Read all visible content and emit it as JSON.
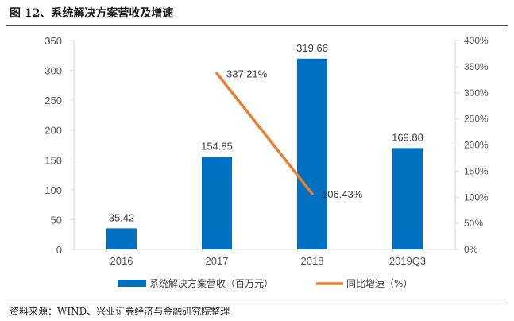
{
  "header": {
    "title": "图 12、系统解决方案营收及增速"
  },
  "footer": {
    "source": "资料来源：WIND、兴业证券经济与金融研究院整理"
  },
  "colors": {
    "bar": "#0070C0",
    "line": "#ED7D31",
    "axis": "#D9D9D9"
  },
  "chart_data": {
    "type": "bar",
    "title": "",
    "categories": [
      "2016",
      "2017",
      "2018",
      "2019Q3"
    ],
    "series": [
      {
        "name": "系统解决方案营收（百万元）",
        "type": "bar",
        "axis": "left",
        "values": [
          35.42,
          154.85,
          319.66,
          169.88
        ],
        "labels": [
          "35.42",
          "154.85",
          "319.66",
          "169.88"
        ]
      },
      {
        "name": "同比增速（%）",
        "type": "line",
        "axis": "right",
        "values": [
          null,
          337.21,
          106.43,
          null
        ],
        "labels": [
          "",
          "337.21%",
          "106.43%",
          ""
        ]
      }
    ],
    "left_axis": {
      "ylim": [
        0,
        350
      ],
      "ticks": [
        "0",
        "50",
        "100",
        "150",
        "200",
        "250",
        "300",
        "350"
      ]
    },
    "right_axis": {
      "ylim": [
        0,
        400
      ],
      "ticks": [
        "0%",
        "50%",
        "100%",
        "150%",
        "200%",
        "250%",
        "300%",
        "350%",
        "400%"
      ]
    },
    "legend": {
      "position": "bottom"
    },
    "grid": false
  }
}
